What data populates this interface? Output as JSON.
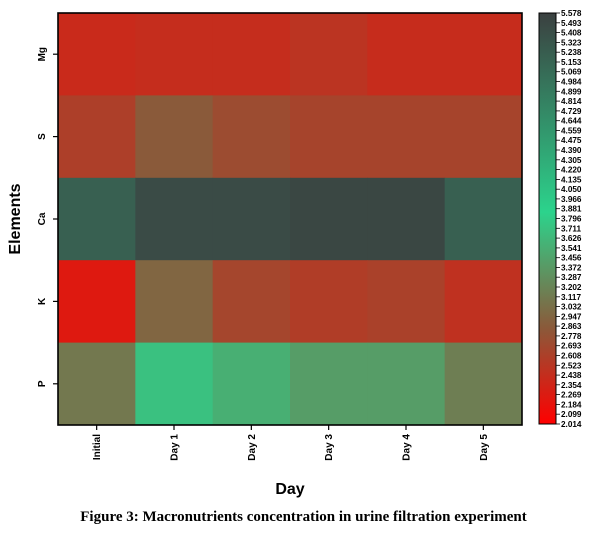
{
  "caption": "Figure 3: Macronutrients concentration in urine filtration experiment",
  "chart_data": {
    "type": "heatmap",
    "title": "",
    "xlabel": "Day",
    "ylabel": "Elements",
    "x_categories": [
      "Initial",
      "Day 1",
      "Day 2",
      "Day 3",
      "Day 4",
      "Day 5"
    ],
    "y_categories": [
      "Mg",
      "S",
      "Ca",
      "K",
      "P"
    ],
    "values": [
      [
        2.4,
        2.43,
        2.43,
        2.5,
        2.42,
        2.42
      ],
      [
        2.6,
        2.85,
        2.72,
        2.65,
        2.65,
        2.65
      ],
      [
        5.2,
        5.45,
        5.45,
        5.5,
        5.5,
        5.2
      ],
      [
        2.25,
        2.95,
        2.66,
        2.58,
        2.62,
        2.47
      ],
      [
        3.1,
        3.7,
        3.55,
        3.4,
        3.4,
        3.15
      ]
    ],
    "colorbar": {
      "min": 2.014,
      "max": 5.578,
      "ticks": [
        "5.578",
        "5.493",
        "5.408",
        "5.323",
        "5.238",
        "5.153",
        "5.069",
        "4.984",
        "4.899",
        "4.814",
        "4.729",
        "4.644",
        "4.559",
        "4.475",
        "4.390",
        "4.305",
        "4.220",
        "4.135",
        "4.050",
        "3.966",
        "3.881",
        "3.796",
        "3.711",
        "3.626",
        "3.541",
        "3.456",
        "3.372",
        "3.287",
        "3.202",
        "3.117",
        "3.032",
        "2.947",
        "2.863",
        "2.778",
        "2.693",
        "2.608",
        "2.523",
        "2.438",
        "2.354",
        "2.269",
        "2.184",
        "2.099",
        "2.014"
      ],
      "colors": [
        "#ff0000",
        "#8a5a3a",
        "#2cd38c",
        "#3b4040"
      ],
      "color_stops": [
        2.014,
        2.85,
        3.85,
        5.578
      ]
    }
  }
}
